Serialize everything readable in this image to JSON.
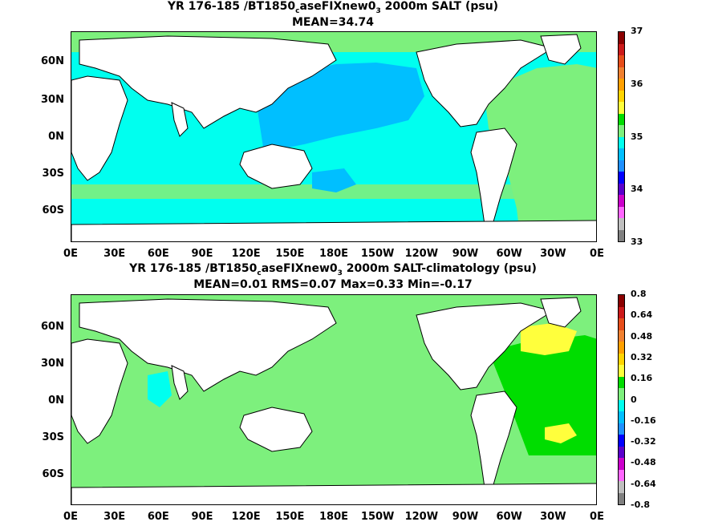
{
  "panel1": {
    "title_a": "YR 176-185 /BT1850",
    "title_sub1": "c",
    "title_b": "aseFIXnew0",
    "title_sub2": "3",
    "title_c": " 2000m SALT (psu)",
    "stats": "MEAN=34.74",
    "colorbar_ticks": [
      "37",
      "36",
      "35",
      "34",
      "33"
    ],
    "colorbar_colors": [
      "#8b0000",
      "#cc1a1a",
      "#e64d1a",
      "#f08030",
      "#ffa000",
      "#ffd400",
      "#ffff3c",
      "#00dd00",
      "#7df07d",
      "#00ffef",
      "#00bfff",
      "#1e90ff",
      "#0000ff",
      "#5a00cc",
      "#cc00cc",
      "#ff66ff",
      "#bfbfbf",
      "#808080"
    ]
  },
  "panel2": {
    "title_a": "YR 176-185 /BT1850",
    "title_sub1": "c",
    "title_b": "aseFIXnew0",
    "title_sub2": "3",
    "title_c": " 2000m SALT-climatology (psu)",
    "stats": "MEAN=0.01   RMS=0.07   Max=0.33   Min=-0.17",
    "colorbar_ticks": [
      "0.8",
      "0.64",
      "0.48",
      "0.32",
      "0.16",
      "0",
      "-0.16",
      "-0.32",
      "-0.48",
      "-0.64",
      "-0.8"
    ],
    "colorbar_colors": [
      "#8b0000",
      "#cc1a1a",
      "#e64d1a",
      "#f08030",
      "#ffa000",
      "#ffd400",
      "#ffff3c",
      "#00dd00",
      "#7df07d",
      "#00ffef",
      "#00bfff",
      "#1e90ff",
      "#0000ff",
      "#5a00cc",
      "#cc00cc",
      "#ff66ff",
      "#bfbfbf",
      "#808080"
    ]
  },
  "lat_labels": [
    "60N",
    "30N",
    "0N",
    "30S",
    "60S"
  ],
  "lon_labels": [
    "0E",
    "30E",
    "60E",
    "90E",
    "120E",
    "150E",
    "180E",
    "150W",
    "120W",
    "90W",
    "60W",
    "30W",
    "0E"
  ],
  "colors": {
    "land": "#ffffff",
    "ocean_mean1": "#00ffef",
    "pacific_mean1": "#00bfff",
    "atlantic_mean1": "#7df07d",
    "ocean_diff": "#7df07d",
    "diff_pos": "#00dd00",
    "diff_high": "#ffff3c",
    "diff_cyan": "#00ffef"
  }
}
